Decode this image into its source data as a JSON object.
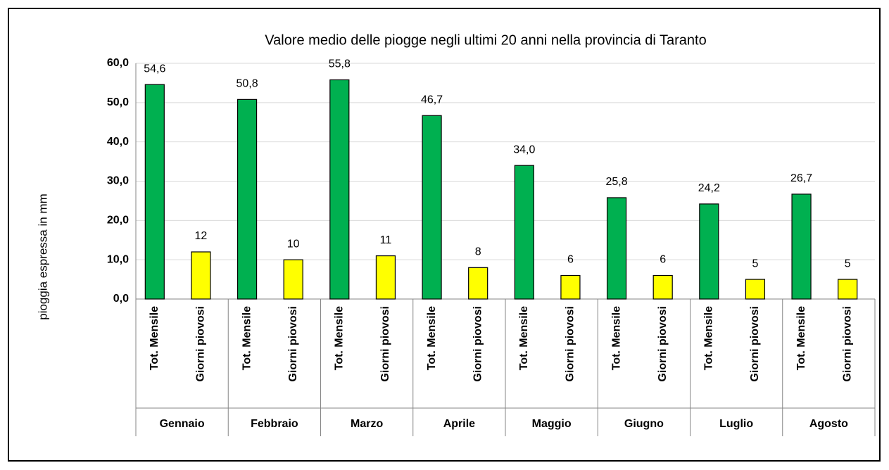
{
  "chart_data": {
    "type": "bar",
    "title": "Valore medio delle piogge negli ultimi 20 anni nella provincia di Taranto",
    "y_label": "pioggia espressa in mm",
    "categories": [
      "Gennaio",
      "Febbraio",
      "Marzo",
      "Aprile",
      "Maggio",
      "Giugno",
      "Luglio",
      "Agosto"
    ],
    "series": [
      {
        "name": "Tot. Mensile",
        "color": "#00b050",
        "values": [
          54.6,
          50.8,
          55.8,
          46.7,
          34.0,
          25.8,
          24.2,
          26.7
        ],
        "value_labels": [
          "54,6",
          "50,8",
          "55,8",
          "46,7",
          "34,0",
          "25,8",
          "24,2",
          "26,7"
        ]
      },
      {
        "name": "Giorni piovosi",
        "color": "#ffff00",
        "values": [
          12,
          10,
          11,
          8,
          6,
          6,
          5,
          5
        ]
      }
    ],
    "ylim": [
      0,
      60
    ],
    "yticks": [
      {
        "value": 0,
        "label": "0,0"
      },
      {
        "value": 10,
        "label": "10,0"
      },
      {
        "value": 20,
        "label": "20,0"
      },
      {
        "value": 30,
        "label": "30,0"
      },
      {
        "value": 40,
        "label": "40,0"
      },
      {
        "value": 50,
        "label": "50,0"
      },
      {
        "value": 60,
        "label": "60,0"
      }
    ],
    "grid": true
  }
}
